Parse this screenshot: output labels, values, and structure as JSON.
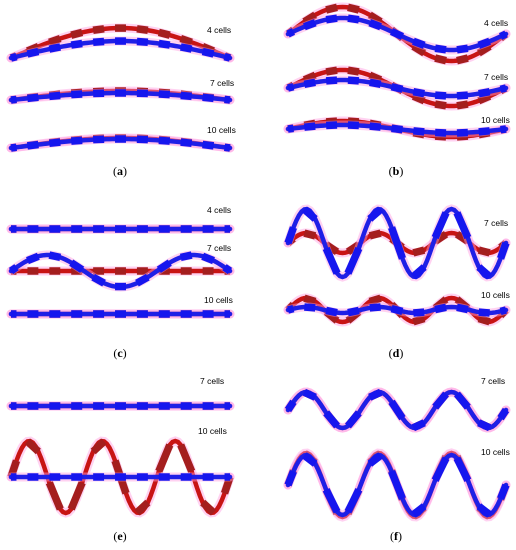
{
  "colors": {
    "red_series": "#c81414",
    "blue_series": "#1f1fe6",
    "marker_red": "#a41e1e",
    "marker_blue": "#1616ee",
    "glow": "#ff9ce0"
  },
  "panels": [
    {
      "id": "a",
      "caption_open": "(",
      "caption_letter": "a",
      "caption_close": ")",
      "traces": [
        {
          "label": "4 cells",
          "red": {
            "shape": "arc",
            "amplitude": 30,
            "offset": 0
          },
          "blue": {
            "shape": "arc",
            "amplitude": 17,
            "offset": 0
          }
        },
        {
          "label": "7 cells",
          "red": {
            "shape": "arc",
            "amplitude": 9,
            "offset": 0
          },
          "blue": {
            "shape": "arc",
            "amplitude": 7,
            "offset": 0
          }
        },
        {
          "label": "10 cells",
          "red": {
            "shape": "arc",
            "amplitude": 10,
            "offset": 0
          },
          "blue": {
            "shape": "arc",
            "amplitude": 9,
            "offset": 0
          }
        }
      ]
    },
    {
      "id": "b",
      "caption_open": "(",
      "caption_letter": "b",
      "caption_close": ")",
      "traces": [
        {
          "label": "4 cells",
          "red": {
            "shape": "sine",
            "cycles": 1,
            "amplitude": 27,
            "offset": 0
          },
          "blue": {
            "shape": "sine",
            "cycles": 1,
            "amplitude": 16,
            "offset": 0
          }
        },
        {
          "label": "7 cells",
          "red": {
            "shape": "sine",
            "cycles": 1,
            "amplitude": 18,
            "offset": 0
          },
          "blue": {
            "shape": "sine",
            "cycles": 1,
            "amplitude": 8,
            "offset": 0
          }
        },
        {
          "label": "10 cells",
          "red": {
            "shape": "sine",
            "cycles": 1,
            "amplitude": 8,
            "offset": 0
          },
          "blue": {
            "shape": "sine",
            "cycles": 1,
            "amplitude": 4,
            "offset": 0
          }
        }
      ]
    },
    {
      "id": "c",
      "caption_open": "(",
      "caption_letter": "c",
      "caption_close": ")",
      "traces": [
        {
          "label": "4 cells",
          "red": {
            "shape": "flat",
            "offset": 0
          },
          "blue": {
            "shape": "flat",
            "offset": 0
          }
        },
        {
          "label": "7 cells",
          "red": {
            "shape": "flat",
            "offset": 0
          },
          "blue": {
            "shape": "sine",
            "cycles": 1.5,
            "amplitude": 16,
            "offset": 0
          }
        },
        {
          "label": "10 cells",
          "red": {
            "shape": "flat",
            "offset": 0
          },
          "blue": {
            "shape": "flat",
            "offset": 0
          }
        }
      ]
    },
    {
      "id": "d",
      "caption_open": "(",
      "caption_letter": "d",
      "caption_close": ")",
      "traces": [
        {
          "label": "7 cells",
          "red": {
            "shape": "sine",
            "cycles": 3,
            "amplitude": 10,
            "offset": 0
          },
          "blue": {
            "shape": "sine",
            "cycles": 3,
            "amplitude": 34,
            "offset": 0
          }
        },
        {
          "label": "10 cells",
          "red": {
            "shape": "sine",
            "cycles": 3,
            "amplitude": 12,
            "offset": 0
          },
          "blue": {
            "shape": "sine",
            "cycles": 3,
            "amplitude": 3,
            "offset": 0
          }
        }
      ]
    },
    {
      "id": "e",
      "caption_open": "(",
      "caption_letter": "e",
      "caption_close": ")",
      "traces": [
        {
          "label": "7 cells",
          "red": {
            "shape": "flat",
            "offset": 0
          },
          "blue": {
            "shape": "flat",
            "offset": 0
          }
        },
        {
          "label": "10 cells",
          "red": {
            "shape": "sine",
            "cycles": 3,
            "amplitude": 36,
            "offset": 0
          },
          "blue": {
            "shape": "flat",
            "offset": 0
          }
        }
      ]
    },
    {
      "id": "f",
      "caption_open": "(",
      "caption_letter": "f",
      "caption_close": ")",
      "traces": [
        {
          "label": "7 cells",
          "red": {
            "shape": "sine",
            "cycles": 3,
            "amplitude": 18,
            "offset": 0
          },
          "blue": {
            "shape": "sine",
            "cycles": 3,
            "amplitude": 18,
            "offset": 0
          }
        },
        {
          "label": "10 cells",
          "red": {
            "shape": "sine",
            "cycles": 3,
            "amplitude": 32,
            "offset": 0
          },
          "blue": {
            "shape": "sine",
            "cycles": 3,
            "amplitude": 30,
            "offset": 0
          }
        }
      ]
    }
  ]
}
